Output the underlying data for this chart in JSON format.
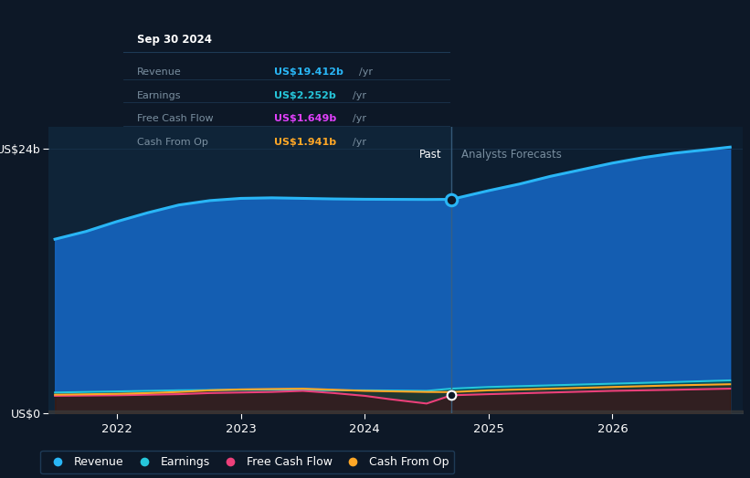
{
  "background_color": "#0d1827",
  "plot_bg_left": "#0f2438",
  "plot_bg_right": "#0d1e30",
  "grid_color": "#1a3550",
  "text_color": "#ffffff",
  "muted_text_color": "#7a8fa0",
  "divider_color": "#2a4560",
  "border_color": "#1e3a55",
  "tooltip_title": "Sep 30 2024",
  "tooltip_bg": "#0a0e18",
  "tooltip_items": [
    {
      "label": "Revenue",
      "value": "US$19.412b",
      "color": "#29b6f6"
    },
    {
      "label": "Earnings",
      "value": "US$2.252b",
      "color": "#26c6da"
    },
    {
      "label": "Free Cash Flow",
      "value": "US$1.649b",
      "color": "#e040fb"
    },
    {
      "label": "Cash From Op",
      "value": "US$1.941b",
      "color": "#ffa726"
    }
  ],
  "ylabel_top": "US$24b",
  "ylabel_bottom": "US$0",
  "past_label": "Past",
  "forecast_label": "Analysts Forecasts",
  "x_ticks": [
    2022,
    2023,
    2024,
    2025,
    2026
  ],
  "divider_x": 2024.7,
  "legend_items": [
    {
      "label": "Revenue",
      "color": "#29b6f6"
    },
    {
      "label": "Earnings",
      "color": "#26c6da"
    },
    {
      "label": "Free Cash Flow",
      "color": "#ec407a"
    },
    {
      "label": "Cash From Op",
      "color": "#ffa726"
    }
  ],
  "revenue": {
    "x": [
      2021.5,
      2021.75,
      2022.0,
      2022.25,
      2022.5,
      2022.75,
      2023.0,
      2023.25,
      2023.5,
      2023.75,
      2024.0,
      2024.25,
      2024.5,
      2024.7,
      2025.0,
      2025.25,
      2025.5,
      2025.75,
      2026.0,
      2026.25,
      2026.5,
      2026.75,
      2026.95
    ],
    "y": [
      15.8,
      16.5,
      17.4,
      18.2,
      18.9,
      19.3,
      19.5,
      19.55,
      19.5,
      19.45,
      19.42,
      19.41,
      19.4,
      19.412,
      20.2,
      20.8,
      21.5,
      22.1,
      22.7,
      23.2,
      23.6,
      23.9,
      24.15
    ]
  },
  "earnings": {
    "x": [
      2021.5,
      2022.0,
      2022.5,
      2023.0,
      2023.25,
      2023.5,
      2023.75,
      2024.0,
      2024.25,
      2024.5,
      2024.7,
      2025.0,
      2025.5,
      2026.0,
      2026.5,
      2026.95
    ],
    "y": [
      1.9,
      2.0,
      2.1,
      2.15,
      2.15,
      2.12,
      2.1,
      2.1,
      2.08,
      2.05,
      2.252,
      2.4,
      2.55,
      2.7,
      2.85,
      3.0
    ]
  },
  "fcf": {
    "x": [
      2021.5,
      2022.0,
      2022.25,
      2022.5,
      2022.75,
      2023.0,
      2023.25,
      2023.5,
      2023.75,
      2024.0,
      2024.2,
      2024.35,
      2024.5,
      2024.7,
      2025.0,
      2025.5,
      2026.0,
      2026.5,
      2026.95
    ],
    "y": [
      1.6,
      1.65,
      1.7,
      1.75,
      1.85,
      1.9,
      1.95,
      2.05,
      1.85,
      1.6,
      1.3,
      1.1,
      0.9,
      1.649,
      1.75,
      1.9,
      2.05,
      2.15,
      2.25
    ]
  },
  "cashfromop": {
    "x": [
      2021.5,
      2022.0,
      2022.25,
      2022.5,
      2022.75,
      2023.0,
      2023.25,
      2023.5,
      2023.75,
      2024.0,
      2024.25,
      2024.5,
      2024.7,
      2025.0,
      2025.5,
      2026.0,
      2026.5,
      2026.95
    ],
    "y": [
      1.7,
      1.78,
      1.85,
      1.95,
      2.1,
      2.18,
      2.22,
      2.25,
      2.15,
      2.05,
      2.0,
      1.95,
      1.941,
      2.1,
      2.25,
      2.4,
      2.55,
      2.65
    ]
  },
  "xlim": [
    2021.45,
    2027.05
  ],
  "ylim": [
    0,
    26.0
  ],
  "rev_dot_y": 19.412,
  "small_dot_y": 1.649
}
